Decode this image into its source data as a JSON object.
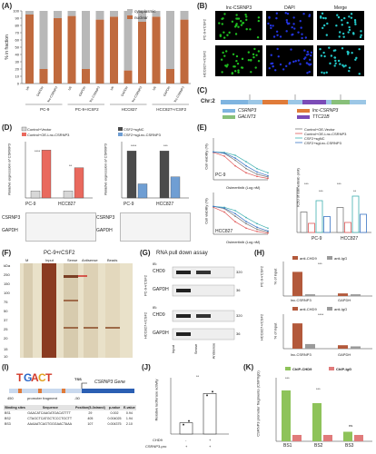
{
  "panels": {
    "A": {
      "label": "(A)",
      "ylabel": "% in fraction",
      "legend": [
        "cytoplasmic",
        "nuclear"
      ],
      "bar_labels": [
        "U6",
        "GAPDH",
        "lnc-CSRNP3",
        "U6",
        "GAPDH",
        "lnc-CSRNP3",
        "U6",
        "GAPDH",
        "lnc-CSRNP3",
        "U6",
        "GAPDH",
        "lnc-CSRNP3"
      ],
      "groups": [
        "PC-9",
        "PC-9+rCSF2",
        "HCC827",
        "HCC827+rCSF2"
      ],
      "yticks": [
        "0",
        "10",
        "20",
        "30",
        "40",
        "50",
        "60",
        "70",
        "80",
        "90",
        "100"
      ]
    },
    "B": {
      "label": "(B)",
      "cols": [
        "lnc-CSRNP3",
        "DAPI",
        "Merge"
      ],
      "rows": [
        "PC-9+rCSF2",
        "HCC827+rCSF2"
      ]
    },
    "C": {
      "label": "(C)",
      "chr": "Chr:2",
      "genes": [
        "CSRNP3",
        "lnc-CSRNP3",
        "GALNT3",
        "TTC21B"
      ],
      "gene_colors": [
        "#7fb4e0",
        "#e07b39",
        "#88c07a",
        "#7b4bb7"
      ]
    },
    "D": {
      "label": "(D)",
      "legend_left": [
        "Control+Vector",
        "Control+OE-Lnc-CSRNP3"
      ],
      "legend_right": [
        "CSF2+sgNC",
        "CSF2+sgLnc-CSRNP3"
      ],
      "ylabel": "Relative expression of CSRNP3",
      "groups": [
        "PC-9",
        "HCC827"
      ],
      "blot_rows": [
        "CSRNP3",
        "GAPDH"
      ],
      "sig_left": [
        "****",
        "**"
      ],
      "sig_right": [
        "****",
        "***"
      ]
    },
    "E": {
      "label": "(E)",
      "ylabel": "Cell viability (%)",
      "xlabel": "Osimertinib (Log nM)",
      "lines": [
        "PC-9",
        "HCC827"
      ],
      "legend": [
        "Control+OE-Vector",
        "Control+OE-Lnc-CSRNP3",
        "CSF2+sgNC",
        "CSF2+sgLnc-CSRNP3"
      ],
      "ic50_label": "IC50 of osimertinib (nM)",
      "groups": [
        "PC-9",
        "HCC827"
      ],
      "sig": [
        "***",
        "***",
        "***",
        "**"
      ]
    },
    "F": {
      "label": "(F)",
      "title": "PC-9+rCSF2",
      "lanes": [
        "M",
        "Input",
        "Sense",
        "Antisense",
        "Beads"
      ],
      "kda": [
        "kDa",
        "250",
        "150",
        "100",
        "75",
        "50",
        "37",
        "25",
        "20",
        "15",
        "10"
      ]
    },
    "G": {
      "label": "(G)",
      "title": "RNA pull down assay",
      "rows": [
        "PC-9+rCSF2",
        "HCC827+rCSF2"
      ],
      "ib": [
        "IB:",
        "IB:"
      ],
      "proteins": [
        "CHD9",
        "GAPDH",
        "CHD9",
        "GAPDH"
      ],
      "kda": [
        "320",
        "36",
        "320",
        "36"
      ],
      "lanes": [
        "Input",
        "Sense",
        "Antisense"
      ]
    },
    "H": {
      "label": "(H)",
      "ylabel": "% of input",
      "rows": [
        "PC-9+rCSF2",
        "HCC827+rCSF2"
      ],
      "legend": [
        "anti-CHD9",
        "anti-IgG"
      ],
      "categories": [
        "lnc-CSRNP3",
        "GAPDH",
        "lnc-CSRNP3",
        "GAPDH"
      ],
      "sig": [
        "***",
        "****"
      ]
    },
    "I": {
      "label": "(I)",
      "tss": "TSS",
      "gene": "CSRNP3 Gene",
      "promoter": "promoter fragment",
      "pos_left": "450",
      "pos_right": "-50",
      "table_header": [
        "Binding sites",
        "Sequence",
        "Position(5-3strand)",
        "p-value",
        "E-value"
      ],
      "table_rows": [
        [
          "BS1",
          "GAACATCAAGATGACATTTT",
          "29",
          "0.002",
          "0.94"
        ],
        [
          "BS2",
          "CTAGCTCATGCTCCCTGCTT",
          "405",
          "0.004025",
          "1.94"
        ],
        [
          "BS3",
          "AAAAATCAGTGGGAACTAAA",
          "107",
          "0.004375",
          "2.10"
        ]
      ]
    },
    "J": {
      "label": "(J)",
      "ylabel": "Relative luciferase activity",
      "rows": [
        "CHD9",
        "CSRNP3-pro"
      ],
      "row_vals": [
        [
          "-",
          "+"
        ],
        [
          "+",
          "+"
        ]
      ],
      "sig": "**"
    },
    "K": {
      "label": "(K)",
      "ylabel": "CSRNP3 promoter fragments (ChIP/IgG)",
      "legend": [
        "ChIP-CHD9",
        "ChIP-IgG"
      ],
      "categories": [
        "BS1",
        "BS2",
        "BS3"
      ],
      "sig": [
        "***",
        "***",
        "ns"
      ]
    }
  },
  "chart_data": [
    {
      "type": "bar",
      "title": "",
      "ylabel": "% in fraction",
      "categories": [
        "U6",
        "GAPDH",
        "lnc-CSRNP3",
        "U6",
        "GAPDH",
        "lnc-CSRNP3",
        "U6",
        "GAPDH",
        "lnc-CSRNP3",
        "U6",
        "GAPDH",
        "lnc-CSRNP3"
      ],
      "ylim": [
        0,
        100
      ],
      "series": [
        {
          "name": "nuclear",
          "values": [
            95,
            20,
            90,
            93,
            20,
            88,
            92,
            18,
            85,
            92,
            20,
            88
          ]
        },
        {
          "name": "cytoplasmic",
          "values": [
            5,
            80,
            10,
            7,
            80,
            12,
            8,
            82,
            15,
            8,
            80,
            12
          ]
        }
      ],
      "colors": [
        "#c06a3e",
        "#b8b8b8"
      ]
    },
    {
      "type": "bar",
      "title": "",
      "ylabel": "Relative expression of CSRNP3",
      "categories": [
        "PC-9",
        "HCC827"
      ],
      "series": [
        {
          "name": "Control+Vector",
          "values": [
            1.0,
            1.0
          ]
        },
        {
          "name": "Control+OE-Lnc-CSRNP3",
          "values": [
            6.8,
            4.3
          ]
        }
      ],
      "ylim": [
        0,
        8
      ]
    },
    {
      "type": "bar",
      "title": "",
      "ylabel": "Relative expression of CSRNP3",
      "categories": [
        "PC-9",
        "HCC827"
      ],
      "series": [
        {
          "name": "CSF2+sgNC",
          "values": [
            1.0,
            1.0
          ]
        },
        {
          "name": "CSF2+sgLnc-CSRNP3",
          "values": [
            0.3,
            0.45
          ]
        }
      ],
      "ylim": [
        0,
        1.2
      ]
    },
    {
      "type": "line",
      "title": "PC-9",
      "xlabel": "Osimertinib (Log nM)",
      "ylabel": "Cell viability (%)",
      "x": [
        -1,
        0,
        1,
        2,
        3,
        4
      ],
      "series": [
        {
          "name": "Control+OE-Vector",
          "values": [
            100,
            95,
            70,
            40,
            20,
            10
          ]
        },
        {
          "name": "Control+OE-Lnc-CSRNP3",
          "values": [
            98,
            85,
            50,
            25,
            12,
            5
          ]
        },
        {
          "name": "CSF2+sgNC",
          "values": [
            100,
            98,
            88,
            65,
            40,
            25
          ]
        },
        {
          "name": "CSF2+sgLnc-CSRNP3",
          "values": [
            100,
            96,
            78,
            50,
            28,
            15
          ]
        }
      ],
      "ylim": [
        0,
        150
      ]
    },
    {
      "type": "line",
      "title": "HCC827",
      "xlabel": "Osimertinib (Log nM)",
      "ylabel": "Cell viability (%)",
      "x": [
        -1,
        0,
        1,
        2,
        3,
        4
      ],
      "series": [
        {
          "name": "Control+OE-Vector",
          "values": [
            100,
            92,
            65,
            38,
            18,
            8
          ]
        },
        {
          "name": "Control+OE-Lnc-CSRNP3",
          "values": [
            97,
            80,
            45,
            22,
            10,
            4
          ]
        },
        {
          "name": "CSF2+sgNC",
          "values": [
            100,
            97,
            85,
            60,
            38,
            22
          ]
        },
        {
          "name": "CSF2+sgLnc-CSRNP3",
          "values": [
            100,
            94,
            74,
            46,
            25,
            12
          ]
        }
      ],
      "ylim": [
        0,
        150
      ]
    },
    {
      "type": "bar",
      "title": "",
      "ylabel": "IC50 of osimertinib (nM)",
      "categories": [
        "PC-9",
        "HCC827"
      ],
      "series": [
        {
          "name": "Control+OE-Vector",
          "values": [
            45,
            55
          ]
        },
        {
          "name": "Control+OE-Lnc-CSRNP3",
          "values": [
            20,
            22
          ]
        },
        {
          "name": "CSF2+sgNC",
          "values": [
            70,
            80
          ]
        },
        {
          "name": "CSF2+sgLnc-CSRNP3",
          "values": [
            35,
            40
          ]
        }
      ],
      "ylim": [
        0,
        100
      ]
    },
    {
      "type": "bar",
      "title": "PC-9+rCSF2",
      "ylabel": "% of input",
      "categories": [
        "lnc-CSRNP3",
        "GAPDH"
      ],
      "series": [
        {
          "name": "anti-CHD9",
          "values": [
            28,
            3
          ]
        },
        {
          "name": "anti-IgG",
          "values": [
            2,
            2
          ]
        }
      ],
      "ylim": [
        0,
        40
      ]
    },
    {
      "type": "bar",
      "title": "HCC827+rCSF2",
      "ylabel": "% of input",
      "categories": [
        "lnc-CSRNP3",
        "GAPDH"
      ],
      "series": [
        {
          "name": "anti-CHD9",
          "values": [
            22,
            3
          ]
        },
        {
          "name": "anti-IgG",
          "values": [
            4,
            2
          ]
        }
      ],
      "ylim": [
        0,
        30
      ]
    },
    {
      "type": "bar",
      "title": "",
      "ylabel": "Relative luciferase activity",
      "categories": [
        "CHD9-",
        "CHD9+"
      ],
      "values": [
        1.0,
        3.6
      ],
      "ylim": [
        0,
        5
      ]
    },
    {
      "type": "bar",
      "title": "",
      "ylabel": "CSRNP3 promoter fragments (ChIP/IgG)",
      "categories": [
        "BS1",
        "BS2",
        "BS3"
      ],
      "series": [
        {
          "name": "ChIP-CHD9",
          "values": [
            8,
            6,
            1.5
          ]
        },
        {
          "name": "ChIP-IgG",
          "values": [
            1,
            1,
            1
          ]
        }
      ],
      "ylim": [
        0,
        10
      ]
    }
  ]
}
